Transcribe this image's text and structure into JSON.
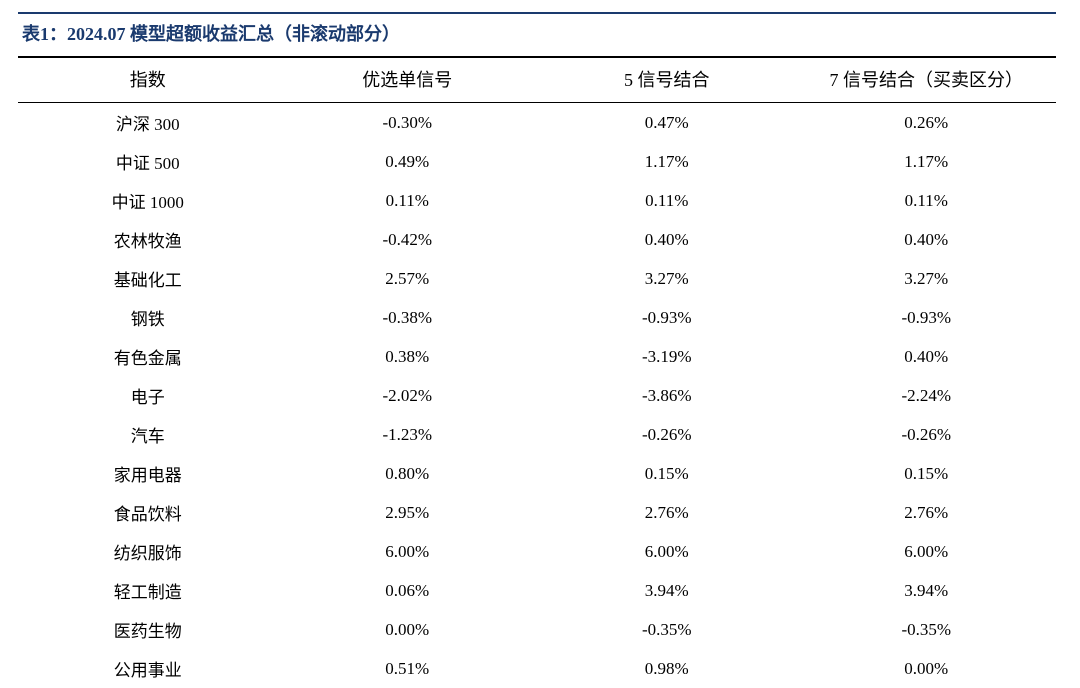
{
  "title": "表1：2024.07 模型超额收益汇总（非滚动部分）",
  "title_color": "#1a3a6e",
  "title_fontsize": 18,
  "border_top_color": "#1a3a6e",
  "table_border_color": "#000000",
  "background_color": "#ffffff",
  "body_fontsize": 17,
  "header_fontsize": 18,
  "columns": [
    "指数",
    "优选单信号",
    "5 信号结合",
    "7 信号结合（买卖区分）"
  ],
  "rows": [
    [
      "沪深 300",
      "-0.30%",
      "0.47%",
      "0.26%"
    ],
    [
      "中证 500",
      "0.49%",
      "1.17%",
      "1.17%"
    ],
    [
      "中证 1000",
      "0.11%",
      "0.11%",
      "0.11%"
    ],
    [
      "农林牧渔",
      "-0.42%",
      "0.40%",
      "0.40%"
    ],
    [
      "基础化工",
      "2.57%",
      "3.27%",
      "3.27%"
    ],
    [
      "钢铁",
      "-0.38%",
      "-0.93%",
      "-0.93%"
    ],
    [
      "有色金属",
      "0.38%",
      "-3.19%",
      "0.40%"
    ],
    [
      "电子",
      "-2.02%",
      "-3.86%",
      "-2.24%"
    ],
    [
      "汽车",
      "-1.23%",
      "-0.26%",
      "-0.26%"
    ],
    [
      "家用电器",
      "0.80%",
      "0.15%",
      "0.15%"
    ],
    [
      "食品饮料",
      "2.95%",
      "2.76%",
      "2.76%"
    ],
    [
      "纺织服饰",
      "6.00%",
      "6.00%",
      "6.00%"
    ],
    [
      "轻工制造",
      "0.06%",
      "3.94%",
      "3.94%"
    ],
    [
      "医药生物",
      "0.00%",
      "-0.35%",
      "-0.35%"
    ],
    [
      "公用事业",
      "0.51%",
      "0.98%",
      "0.00%"
    ]
  ]
}
